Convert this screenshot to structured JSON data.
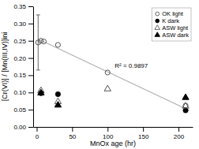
{
  "chart_data": {
    "type": "scatter",
    "xlabel": "MnOx age (hr)",
    "ylabel": "[Cr(VI)] / [Mn(III,IV)]ini",
    "xlim": [
      -5,
      220
    ],
    "ylim": [
      0.0,
      0.35
    ],
    "xticks": [
      0,
      50,
      100,
      150,
      200
    ],
    "yticks": [
      {
        "value": 0.0,
        "label": "0.00"
      },
      0.05,
      {
        "value": 0.1,
        "label": "0.10"
      },
      0.15,
      {
        "value": 0.2,
        "label": "0.20"
      },
      0.25,
      {
        "value": 0.3,
        "label": "0.30"
      },
      0.35
    ],
    "grid": false,
    "legend": "upper right",
    "series": [
      {
        "type": "line",
        "color": "#b0b0b0",
        "x": [
          2,
          215
        ],
        "values": [
          0.255,
          0.048
        ]
      },
      {
        "name": "OK light",
        "marker": "circle-open",
        "color": "#555555",
        "x": [
          2,
          6,
          10,
          30,
          100,
          210
        ],
        "values": [
          0.245,
          0.25,
          0.248,
          0.238,
          0.158,
          0.062
        ],
        "errors": [
          0.08,
          null,
          null,
          null,
          null,
          null
        ]
      },
      {
        "name": "K dark",
        "marker": "circle",
        "color": "#000000",
        "x": [
          6,
          30,
          210
        ],
        "values": [
          0.098,
          0.095,
          0.048
        ]
      },
      {
        "name": "ASW light",
        "marker": "triangle-open",
        "color": "#555555",
        "x": [
          6,
          30,
          100,
          210
        ],
        "values": [
          0.105,
          0.073,
          0.11,
          0.06
        ]
      },
      {
        "name": "ASW dark",
        "marker": "triangle",
        "color": "#000000",
        "x": [
          6,
          30,
          210
        ],
        "values": [
          0.098,
          0.063,
          0.085
        ]
      }
    ],
    "annotations": [
      {
        "text": "R² = 0.9897",
        "x": 110,
        "y": 0.172
      }
    ]
  }
}
